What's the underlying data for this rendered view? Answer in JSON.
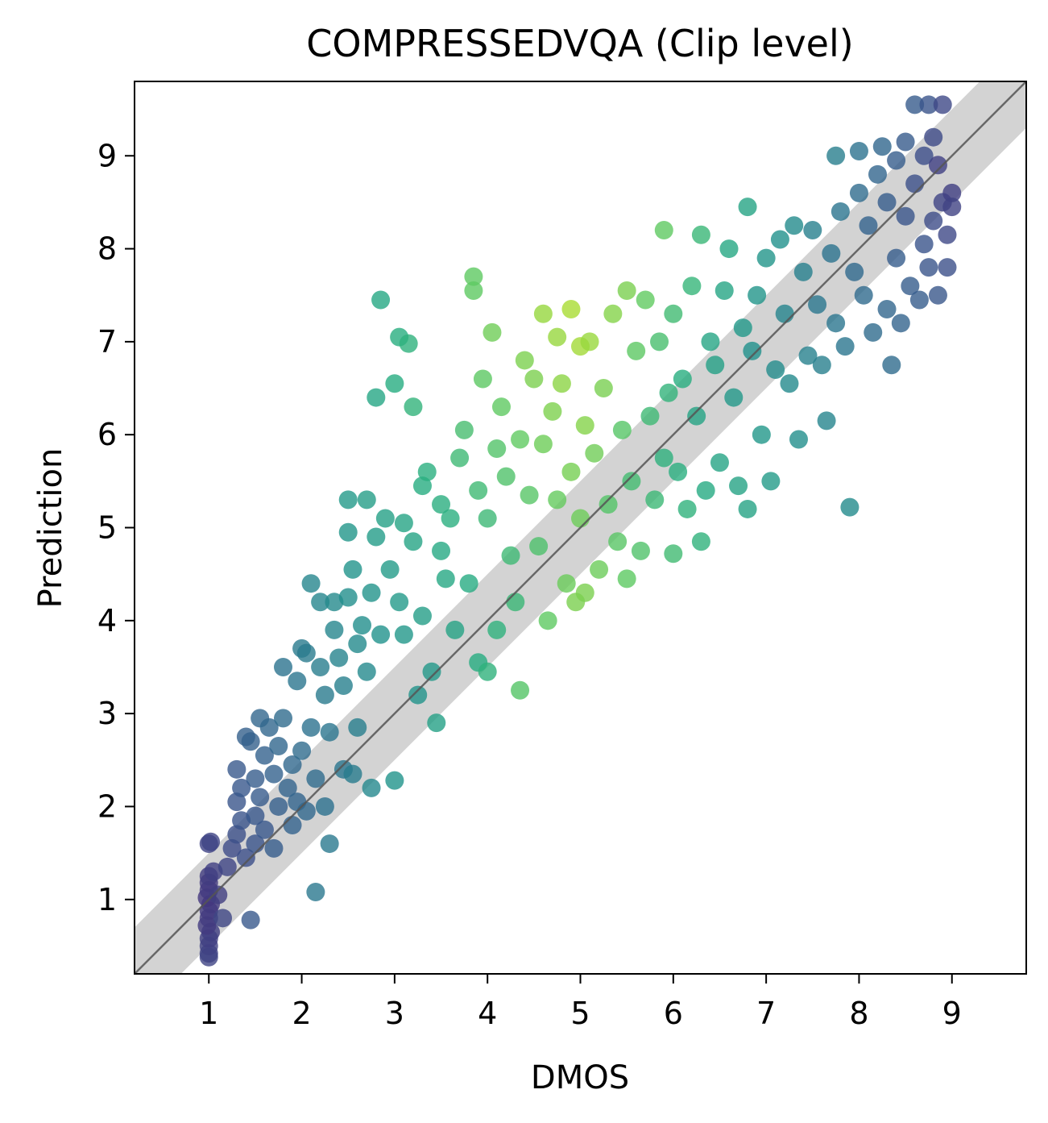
{
  "chart_data": {
    "type": "scatter",
    "title": "COMPRESSEDVQA (Clip level)",
    "xlabel": "DMOS",
    "ylabel": "Prediction",
    "xlim": [
      0.2,
      9.8
    ],
    "ylim": [
      0.2,
      9.8
    ],
    "xticks": [
      1,
      2,
      3,
      4,
      5,
      6,
      7,
      8,
      9
    ],
    "yticks": [
      1,
      2,
      3,
      4,
      5,
      6,
      7,
      8,
      9
    ],
    "xtick_labels": [
      "1",
      "2",
      "3",
      "4",
      "5",
      "6",
      "7",
      "8",
      "9"
    ],
    "ytick_labels": [
      "1",
      "2",
      "3",
      "4",
      "5",
      "6",
      "7",
      "8",
      "9"
    ],
    "reference_line": {
      "slope": 1,
      "intercept": 0,
      "color": "#555555"
    },
    "tolerance_band": {
      "half_width": 0.5,
      "color": "#d3d3d3"
    },
    "colormap": "viridis",
    "grid": false,
    "points": [
      [
        1.0,
        0.38
      ],
      [
        1.0,
        0.42
      ],
      [
        1.0,
        0.5
      ],
      [
        1.0,
        0.58
      ],
      [
        1.02,
        0.65
      ],
      [
        0.98,
        0.72
      ],
      [
        1.0,
        0.8
      ],
      [
        1.0,
        0.88
      ],
      [
        1.02,
        0.95
      ],
      [
        0.98,
        1.02
      ],
      [
        1.0,
        1.1
      ],
      [
        1.0,
        1.18
      ],
      [
        1.0,
        1.25
      ],
      [
        1.05,
        1.3
      ],
      [
        1.0,
        1.6
      ],
      [
        1.02,
        1.62
      ],
      [
        1.1,
        1.05
      ],
      [
        1.15,
        0.8
      ],
      [
        1.2,
        1.35
      ],
      [
        1.25,
        1.55
      ],
      [
        1.3,
        1.7
      ],
      [
        1.35,
        1.85
      ],
      [
        1.3,
        2.05
      ],
      [
        1.3,
        2.4
      ],
      [
        1.35,
        2.2
      ],
      [
        1.4,
        2.75
      ],
      [
        1.45,
        2.7
      ],
      [
        1.4,
        1.45
      ],
      [
        1.45,
        0.78
      ],
      [
        1.5,
        1.6
      ],
      [
        1.5,
        1.9
      ],
      [
        1.5,
        2.3
      ],
      [
        1.55,
        2.95
      ],
      [
        1.55,
        2.1
      ],
      [
        1.6,
        1.75
      ],
      [
        1.6,
        2.55
      ],
      [
        1.65,
        2.85
      ],
      [
        1.7,
        2.35
      ],
      [
        1.7,
        1.55
      ],
      [
        1.75,
        2.0
      ],
      [
        1.75,
        2.65
      ],
      [
        1.8,
        3.5
      ],
      [
        1.8,
        2.95
      ],
      [
        1.85,
        2.2
      ],
      [
        1.9,
        1.8
      ],
      [
        1.9,
        2.45
      ],
      [
        1.95,
        3.35
      ],
      [
        1.95,
        2.05
      ],
      [
        2.0,
        3.7
      ],
      [
        2.0,
        2.6
      ],
      [
        2.05,
        3.65
      ],
      [
        2.05,
        1.95
      ],
      [
        2.1,
        2.85
      ],
      [
        2.1,
        4.4
      ],
      [
        2.15,
        1.08
      ],
      [
        2.15,
        2.3
      ],
      [
        2.2,
        3.5
      ],
      [
        2.2,
        4.2
      ],
      [
        2.25,
        3.2
      ],
      [
        2.25,
        2.0
      ],
      [
        2.3,
        2.8
      ],
      [
        2.3,
        1.6
      ],
      [
        2.35,
        4.2
      ],
      [
        2.35,
        3.9
      ],
      [
        2.4,
        3.6
      ],
      [
        2.45,
        2.4
      ],
      [
        2.45,
        3.3
      ],
      [
        2.5,
        4.25
      ],
      [
        2.5,
        5.3
      ],
      [
        2.5,
        4.95
      ],
      [
        2.55,
        4.55
      ],
      [
        2.55,
        2.35
      ],
      [
        2.6,
        3.75
      ],
      [
        2.6,
        2.85
      ],
      [
        2.65,
        3.95
      ],
      [
        2.7,
        5.3
      ],
      [
        2.7,
        3.45
      ],
      [
        2.75,
        2.2
      ],
      [
        2.75,
        4.3
      ],
      [
        2.8,
        6.4
      ],
      [
        2.8,
        4.9
      ],
      [
        2.85,
        7.45
      ],
      [
        2.85,
        3.85
      ],
      [
        2.9,
        5.1
      ],
      [
        2.95,
        4.55
      ],
      [
        3.0,
        2.28
      ],
      [
        3.0,
        6.55
      ],
      [
        3.05,
        7.05
      ],
      [
        3.05,
        4.2
      ],
      [
        3.1,
        5.05
      ],
      [
        3.1,
        3.85
      ],
      [
        3.15,
        6.98
      ],
      [
        3.2,
        6.3
      ],
      [
        3.2,
        4.85
      ],
      [
        3.25,
        3.2
      ],
      [
        3.3,
        5.45
      ],
      [
        3.3,
        4.05
      ],
      [
        3.35,
        5.6
      ],
      [
        3.4,
        3.45
      ],
      [
        3.45,
        2.9
      ],
      [
        3.5,
        4.75
      ],
      [
        3.5,
        5.25
      ],
      [
        3.55,
        4.45
      ],
      [
        3.6,
        5.1
      ],
      [
        3.65,
        3.9
      ],
      [
        3.7,
        5.75
      ],
      [
        3.75,
        6.05
      ],
      [
        3.8,
        4.4
      ],
      [
        3.85,
        7.55
      ],
      [
        3.85,
        7.7
      ],
      [
        3.9,
        5.4
      ],
      [
        3.9,
        3.55
      ],
      [
        3.95,
        6.6
      ],
      [
        4.0,
        5.1
      ],
      [
        4.0,
        3.45
      ],
      [
        4.05,
        7.1
      ],
      [
        4.1,
        5.85
      ],
      [
        4.1,
        3.9
      ],
      [
        4.15,
        6.3
      ],
      [
        4.2,
        5.55
      ],
      [
        4.25,
        4.7
      ],
      [
        4.3,
        4.2
      ],
      [
        4.35,
        5.95
      ],
      [
        4.35,
        3.25
      ],
      [
        4.4,
        6.8
      ],
      [
        4.45,
        5.35
      ],
      [
        4.5,
        6.6
      ],
      [
        4.55,
        4.8
      ],
      [
        4.6,
        7.3
      ],
      [
        4.6,
        5.9
      ],
      [
        4.65,
        4.0
      ],
      [
        4.7,
        6.25
      ],
      [
        4.75,
        5.3
      ],
      [
        4.75,
        7.05
      ],
      [
        4.8,
        6.55
      ],
      [
        4.85,
        4.4
      ],
      [
        4.9,
        7.35
      ],
      [
        4.9,
        5.6
      ],
      [
        4.95,
        4.2
      ],
      [
        5.0,
        6.95
      ],
      [
        5.0,
        5.1
      ],
      [
        5.05,
        6.1
      ],
      [
        5.05,
        4.3
      ],
      [
        5.1,
        7.0
      ],
      [
        5.15,
        5.8
      ],
      [
        5.2,
        4.55
      ],
      [
        5.25,
        6.5
      ],
      [
        5.3,
        5.25
      ],
      [
        5.35,
        7.3
      ],
      [
        5.4,
        4.85
      ],
      [
        5.45,
        6.05
      ],
      [
        5.5,
        7.55
      ],
      [
        5.5,
        4.45
      ],
      [
        5.55,
        5.5
      ],
      [
        5.6,
        6.9
      ],
      [
        5.65,
        4.75
      ],
      [
        5.7,
        7.45
      ],
      [
        5.75,
        6.2
      ],
      [
        5.8,
        5.3
      ],
      [
        5.85,
        7.0
      ],
      [
        5.9,
        8.2
      ],
      [
        5.9,
        5.75
      ],
      [
        5.95,
        6.45
      ],
      [
        6.0,
        4.72
      ],
      [
        6.0,
        7.3
      ],
      [
        6.05,
        5.6
      ],
      [
        6.1,
        6.6
      ],
      [
        6.15,
        5.2
      ],
      [
        6.2,
        7.6
      ],
      [
        6.25,
        6.2
      ],
      [
        6.3,
        4.85
      ],
      [
        6.3,
        8.15
      ],
      [
        6.35,
        5.4
      ],
      [
        6.4,
        7.0
      ],
      [
        6.45,
        6.75
      ],
      [
        6.5,
        5.7
      ],
      [
        6.55,
        7.55
      ],
      [
        6.6,
        8.0
      ],
      [
        6.65,
        6.4
      ],
      [
        6.7,
        5.45
      ],
      [
        6.75,
        7.15
      ],
      [
        6.8,
        8.45
      ],
      [
        6.8,
        5.2
      ],
      [
        6.85,
        6.9
      ],
      [
        6.9,
        7.5
      ],
      [
        6.95,
        6.0
      ],
      [
        7.0,
        7.9
      ],
      [
        7.05,
        5.5
      ],
      [
        7.1,
        6.7
      ],
      [
        7.15,
        8.1
      ],
      [
        7.2,
        7.3
      ],
      [
        7.25,
        6.55
      ],
      [
        7.3,
        8.25
      ],
      [
        7.35,
        5.95
      ],
      [
        7.4,
        7.75
      ],
      [
        7.45,
        6.85
      ],
      [
        7.5,
        8.2
      ],
      [
        7.55,
        7.4
      ],
      [
        7.6,
        6.75
      ],
      [
        7.65,
        6.15
      ],
      [
        7.7,
        7.95
      ],
      [
        7.75,
        9.0
      ],
      [
        7.75,
        7.2
      ],
      [
        7.8,
        8.4
      ],
      [
        7.85,
        6.95
      ],
      [
        7.9,
        5.22
      ],
      [
        7.95,
        7.75
      ],
      [
        8.0,
        8.6
      ],
      [
        8.0,
        9.05
      ],
      [
        8.05,
        7.5
      ],
      [
        8.1,
        8.25
      ],
      [
        8.15,
        7.1
      ],
      [
        8.2,
        8.8
      ],
      [
        8.25,
        9.1
      ],
      [
        8.3,
        7.35
      ],
      [
        8.3,
        8.5
      ],
      [
        8.35,
        6.75
      ],
      [
        8.4,
        7.9
      ],
      [
        8.4,
        8.95
      ],
      [
        8.45,
        7.2
      ],
      [
        8.5,
        8.35
      ],
      [
        8.5,
        9.15
      ],
      [
        8.55,
        7.6
      ],
      [
        8.6,
        8.7
      ],
      [
        8.6,
        9.55
      ],
      [
        8.65,
        7.45
      ],
      [
        8.7,
        8.05
      ],
      [
        8.7,
        9.0
      ],
      [
        8.75,
        7.8
      ],
      [
        8.75,
        9.55
      ],
      [
        8.8,
        8.3
      ],
      [
        8.8,
        9.2
      ],
      [
        8.85,
        7.5
      ],
      [
        8.85,
        8.9
      ],
      [
        8.9,
        8.5
      ],
      [
        8.9,
        9.55
      ],
      [
        8.95,
        8.15
      ],
      [
        8.95,
        7.8
      ],
      [
        9.0,
        8.6
      ],
      [
        9.0,
        8.45
      ]
    ]
  }
}
